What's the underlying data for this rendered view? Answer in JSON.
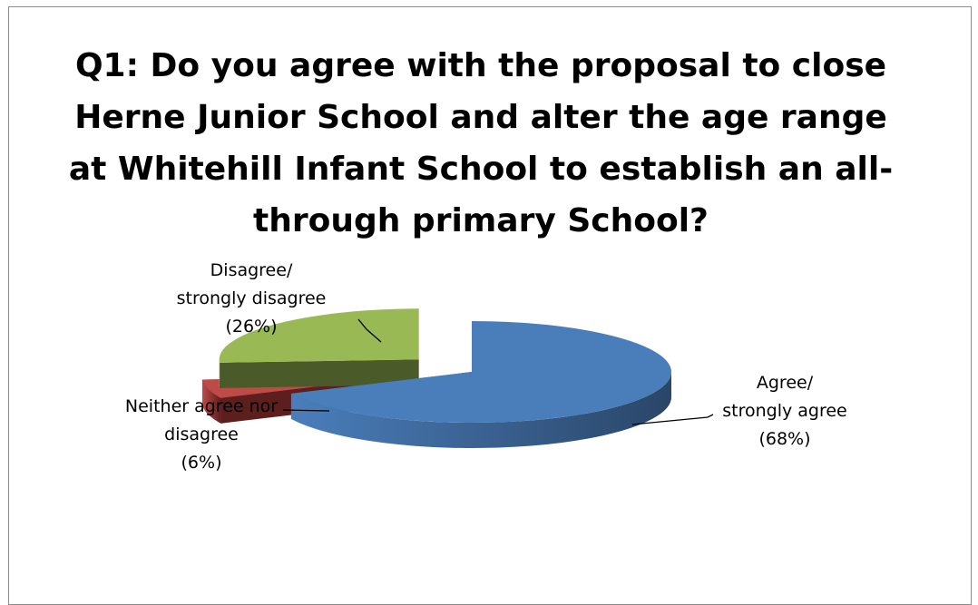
{
  "chart_data": {
    "type": "pie",
    "title": "Q1: Do you agree with the proposal to close Herne Junior School and alter the age range at Whitehill Infant School to establish an all-through primary School?",
    "legend": "none",
    "slices": [
      {
        "label_lines": [
          "Agree/",
          "strongly agree",
          "(68%)"
        ],
        "value": 68,
        "color": "#4a7ebb",
        "side_color": "#2a4668",
        "exploded": false
      },
      {
        "label_lines": [
          "Neither agree nor",
          "disagree",
          "(6%)"
        ],
        "value": 6,
        "color": "#be4b48",
        "side_color": "#5c1f1e",
        "exploded": true
      },
      {
        "label_lines": [
          "Disagree/",
          "strongly disagree",
          "(26%)"
        ],
        "value": 26,
        "color": "#98b954",
        "side_color": "#4a5a28",
        "exploded": true
      }
    ]
  }
}
